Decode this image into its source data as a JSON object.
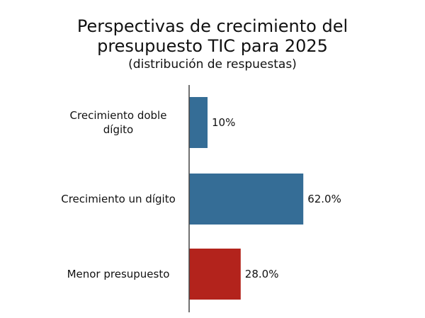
{
  "chart_data": {
    "type": "bar",
    "orientation": "horizontal",
    "title": "Perspectivas de crecimiento del presupuesto TIC para 2025",
    "title_lines": [
      "Perspectivas de crecimiento del",
      "presupuesto TIC para 2025"
    ],
    "subtitle": "(distribución de respuestas)",
    "categories": [
      "Crecimiento doble dígito",
      "Crecimiento un dígito",
      "Menor presupuesto"
    ],
    "category_lines": [
      [
        "Crecimiento doble",
        "dígito"
      ],
      [
        "Crecimiento un dígito"
      ],
      [
        "Menor presupuesto"
      ]
    ],
    "values": [
      10,
      62,
      28
    ],
    "value_labels": [
      "10%",
      "62.0%",
      "28.0%"
    ],
    "colors": [
      "#356d96",
      "#356d96",
      "#b3231c"
    ],
    "xlim": [
      0,
      100
    ],
    "grid": false,
    "legend": "none"
  }
}
